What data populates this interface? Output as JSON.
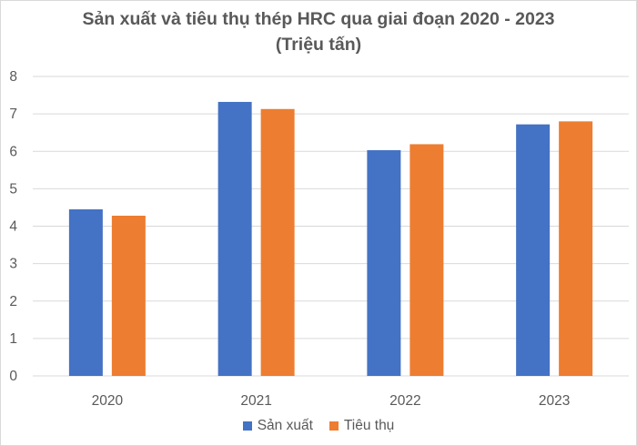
{
  "chart_data": {
    "type": "bar",
    "title": "Sản xuất và tiêu thụ thép HRC qua giai đoạn 2020 - 2023",
    "subtitle": "(Triệu tấn)",
    "categories": [
      "2020",
      "2021",
      "2022",
      "2023"
    ],
    "series": [
      {
        "name": "Sản xuất",
        "color": "#4472C4",
        "values": [
          4.45,
          7.32,
          6.03,
          6.72
        ]
      },
      {
        "name": "Tiêu thụ",
        "color": "#ED7D31",
        "values": [
          4.28,
          7.13,
          6.19,
          6.8
        ]
      }
    ],
    "ylim": [
      0,
      8
    ],
    "yticks": [
      "0",
      "1",
      "2",
      "3",
      "4",
      "5",
      "6",
      "7",
      "8"
    ],
    "grid": true,
    "legend_position": "bottom"
  }
}
